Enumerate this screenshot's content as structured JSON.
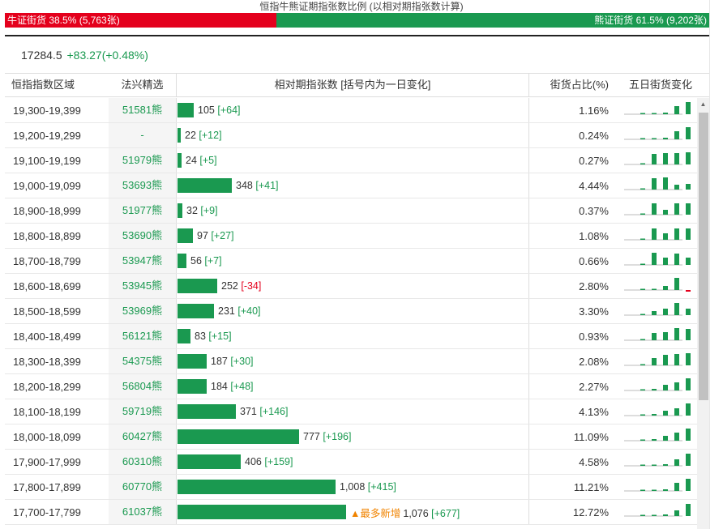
{
  "title": "恒指牛熊证期指张数比例 (以相对期指张数计算)",
  "ratio": {
    "bull_label": "牛证街货 38.5% (5,763张)",
    "bull_pct": 38.5,
    "bear_label": "熊证街货 61.5% (9,202张)",
    "bear_pct": 61.5
  },
  "quote": {
    "price": "17284.5",
    "change": "+83.27(+0.48%)"
  },
  "headers": {
    "range": "恒指指数区域",
    "pick": "法兴精选",
    "bar": "相对期指张数 [括号内为一日变化]",
    "share": "街货占比(%)",
    "five": "五日街货变化"
  },
  "colors": {
    "bull": "#e4001c",
    "bear": "#1a9950",
    "highlight": "#f08300"
  },
  "max_contracts": 1076,
  "rows": [
    {
      "range": "19,300-19,399",
      "pick": "51581熊",
      "contracts": 105,
      "contracts_text": "105",
      "delta": "[+64]",
      "tag": "",
      "share": "1.16%",
      "five": [
        0.05,
        0.05,
        0.1,
        0.6,
        0.95
      ],
      "five_last_neg": false
    },
    {
      "range": "19,200-19,299",
      "pick": "-",
      "contracts": 22,
      "contracts_text": "22",
      "delta": "[+12]",
      "tag": "",
      "share": "0.24%",
      "five": [
        0,
        0,
        0.1,
        0.6,
        0.95
      ],
      "five_last_neg": false
    },
    {
      "range": "19,100-19,199",
      "pick": "51979熊",
      "contracts": 24,
      "contracts_text": "24",
      "delta": "[+5]",
      "tag": "",
      "share": "0.27%",
      "five": [
        0,
        0.8,
        0.85,
        0.85,
        0.95
      ],
      "five_last_neg": false
    },
    {
      "range": "19,000-19,099",
      "pick": "53693熊",
      "contracts": 348,
      "contracts_text": "348",
      "delta": "[+41]",
      "tag": "",
      "share": "4.44%",
      "five": [
        0,
        0.9,
        0.95,
        0.4,
        0.45
      ],
      "five_last_neg": false
    },
    {
      "range": "18,900-18,999",
      "pick": "51977熊",
      "contracts": 32,
      "contracts_text": "32",
      "delta": "[+9]",
      "tag": "",
      "share": "0.37%",
      "five": [
        0,
        0.9,
        0.4,
        0.9,
        0.9
      ],
      "five_last_neg": false
    },
    {
      "range": "18,800-18,899",
      "pick": "53690熊",
      "contracts": 97,
      "contracts_text": "97",
      "delta": "[+27]",
      "tag": "",
      "share": "1.08%",
      "five": [
        0,
        0.85,
        0.5,
        0.85,
        0.85
      ],
      "five_last_neg": false
    },
    {
      "range": "18,700-18,799",
      "pick": "53947熊",
      "contracts": 56,
      "contracts_text": "56",
      "delta": "[+7]",
      "tag": "",
      "share": "0.66%",
      "five": [
        0,
        0.95,
        0.55,
        0.85,
        0.55
      ],
      "five_last_neg": false
    },
    {
      "range": "18,600-18,699",
      "pick": "53945熊",
      "contracts": 252,
      "contracts_text": "252",
      "delta": "[-34]",
      "tag": "",
      "share": "2.80%",
      "five": [
        0,
        0,
        0.3,
        0.95,
        -0.15
      ],
      "five_last_neg": true
    },
    {
      "range": "18,500-18,599",
      "pick": "53969熊",
      "contracts": 231,
      "contracts_text": "231",
      "delta": "[+40]",
      "tag": "",
      "share": "3.30%",
      "five": [
        0,
        0.3,
        0.5,
        0.95,
        0.5
      ],
      "five_last_neg": false
    },
    {
      "range": "18,400-18,499",
      "pick": "56121熊",
      "contracts": 83,
      "contracts_text": "83",
      "delta": "[+15]",
      "tag": "",
      "share": "0.93%",
      "five": [
        0,
        0.55,
        0.6,
        0.95,
        0.85
      ],
      "five_last_neg": false
    },
    {
      "range": "18,300-18,399",
      "pick": "54375熊",
      "contracts": 187,
      "contracts_text": "187",
      "delta": "[+30]",
      "tag": "",
      "share": "2.08%",
      "five": [
        0,
        0.55,
        0.8,
        0.9,
        0.95
      ],
      "five_last_neg": false
    },
    {
      "range": "18,200-18,299",
      "pick": "56804熊",
      "contracts": 184,
      "contracts_text": "184",
      "delta": "[+48]",
      "tag": "",
      "share": "2.27%",
      "five": [
        0,
        0.1,
        0.45,
        0.65,
        0.95
      ],
      "five_last_neg": false
    },
    {
      "range": "18,100-18,199",
      "pick": "59719熊",
      "contracts": 371,
      "contracts_text": "371",
      "delta": "[+146]",
      "tag": "",
      "share": "4.13%",
      "five": [
        0,
        0.1,
        0.35,
        0.55,
        0.95
      ],
      "five_last_neg": false
    },
    {
      "range": "18,000-18,099",
      "pick": "60427熊",
      "contracts": 777,
      "contracts_text": "777",
      "delta": "[+196]",
      "tag": "",
      "share": "11.09%",
      "five": [
        0,
        0.1,
        0.35,
        0.6,
        0.95
      ],
      "five_last_neg": false
    },
    {
      "range": "17,900-17,999",
      "pick": "60310熊",
      "contracts": 406,
      "contracts_text": "406",
      "delta": "[+159]",
      "tag": "",
      "share": "4.58%",
      "five": [
        0,
        0.05,
        0.1,
        0.5,
        0.95
      ],
      "five_last_neg": false
    },
    {
      "range": "17,800-17,899",
      "pick": "60770熊",
      "contracts": 1008,
      "contracts_text": "1,008",
      "delta": "[+415]",
      "tag": "",
      "share": "11.21%",
      "five": [
        0,
        0.05,
        0.1,
        0.6,
        0.95
      ],
      "five_last_neg": false
    },
    {
      "range": "17,700-17,799",
      "pick": "61037熊",
      "contracts": 1076,
      "contracts_text": "1,076",
      "delta": "[+677]",
      "tag": "▲最多新增",
      "share": "12.72%",
      "five": [
        0,
        0.05,
        0.1,
        0.45,
        0.95
      ],
      "five_last_neg": false
    }
  ]
}
